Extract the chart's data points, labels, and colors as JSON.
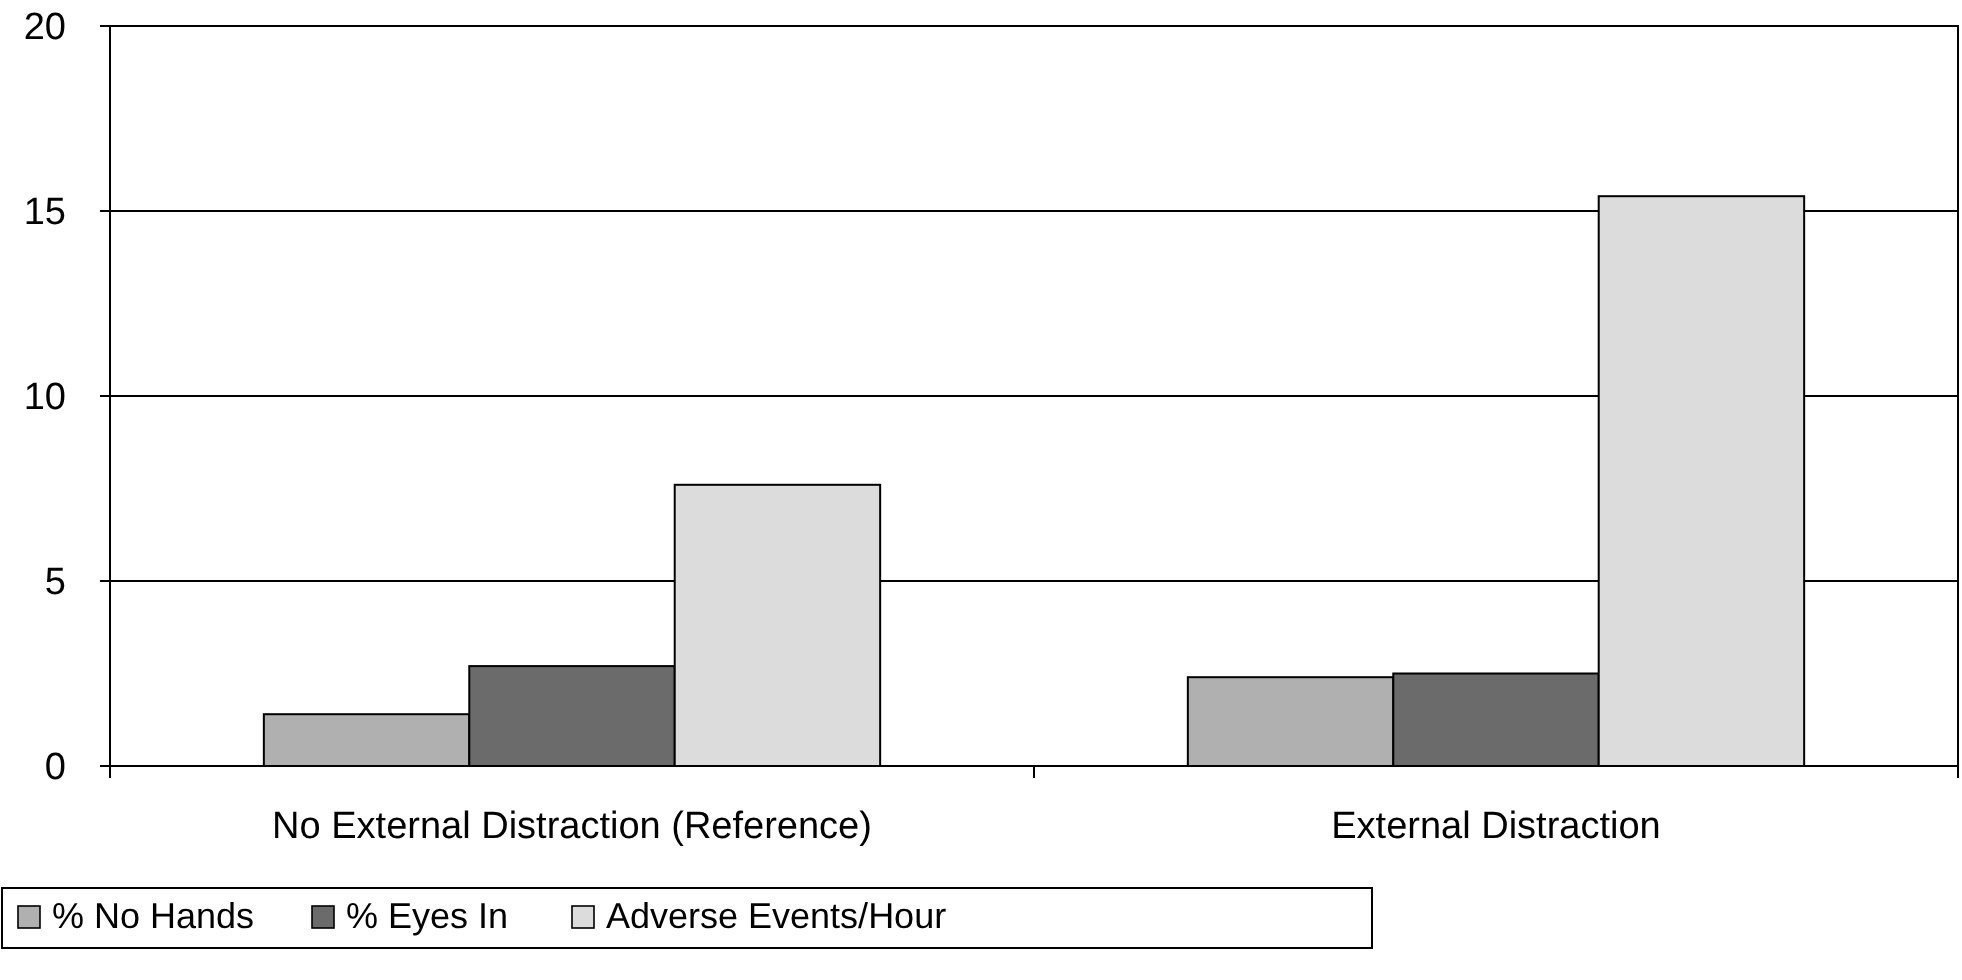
{
  "chart_data": {
    "type": "bar",
    "categories": [
      "No External Distraction (Reference)",
      "External Distraction"
    ],
    "series": [
      {
        "name": "% No Hands",
        "color": "#b0b0b0",
        "values": [
          1.4,
          2.4
        ]
      },
      {
        "name": "% Eyes In",
        "color": "#6b6b6b",
        "values": [
          2.7,
          2.5
        ]
      },
      {
        "name": "Adverse Events/Hour",
        "color": "#dcdcdc",
        "values": [
          7.6,
          15.4
        ]
      }
    ],
    "ylim": [
      0,
      20
    ],
    "yticks": [
      0,
      5,
      10,
      15,
      20
    ],
    "grid": "y",
    "legend": "bottom left"
  }
}
